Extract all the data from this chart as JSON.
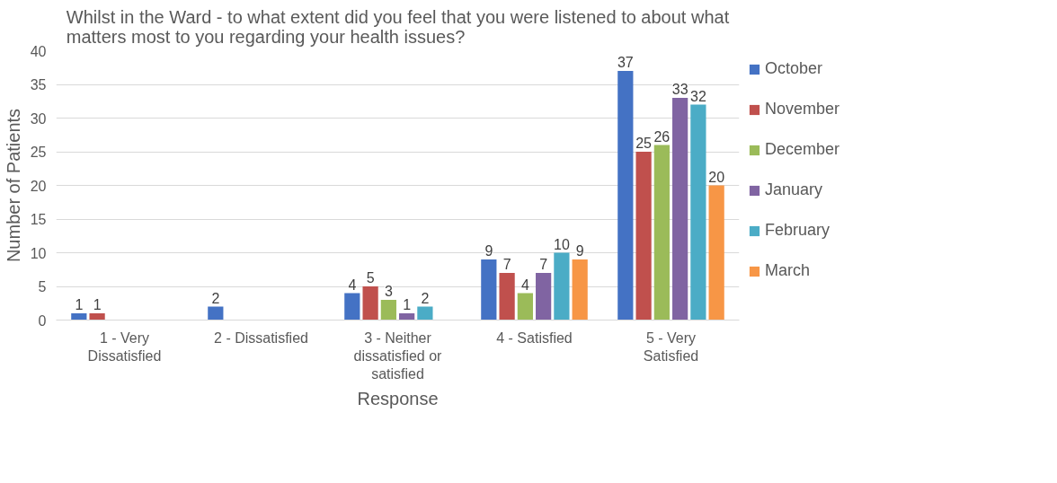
{
  "chart_data": {
    "type": "bar",
    "title": "Whilst in the Ward - to what extent did you feel that you were listened to about what matters most to you regarding your health issues?",
    "xlabel": "Response",
    "ylabel": "Number of Patients",
    "categories": [
      "1 - Very Dissatisfied",
      "2 - Dissatisfied",
      "3 - Neither dissatisfied or satisfied",
      "4 - Satisfied",
      "5 - Very Satisfied"
    ],
    "series": [
      {
        "name": "October",
        "color": "#4472c4",
        "values": [
          1,
          2,
          4,
          9,
          37
        ]
      },
      {
        "name": "November",
        "color": "#c0504d",
        "values": [
          1,
          null,
          5,
          7,
          25
        ]
      },
      {
        "name": "December",
        "color": "#9bbb59",
        "values": [
          null,
          null,
          3,
          4,
          26
        ]
      },
      {
        "name": "January",
        "color": "#8064a2",
        "values": [
          null,
          null,
          1,
          7,
          33
        ]
      },
      {
        "name": "February",
        "color": "#4bacc6",
        "values": [
          null,
          null,
          2,
          10,
          32
        ]
      },
      {
        "name": "March",
        "color": "#f79646",
        "values": [
          null,
          null,
          null,
          9,
          20
        ]
      }
    ],
    "ylim": [
      0,
      40
    ],
    "yticks": [
      0,
      5,
      10,
      15,
      20,
      25,
      30,
      35,
      40
    ],
    "grid": "y",
    "legend": "right",
    "data_labels": true
  }
}
